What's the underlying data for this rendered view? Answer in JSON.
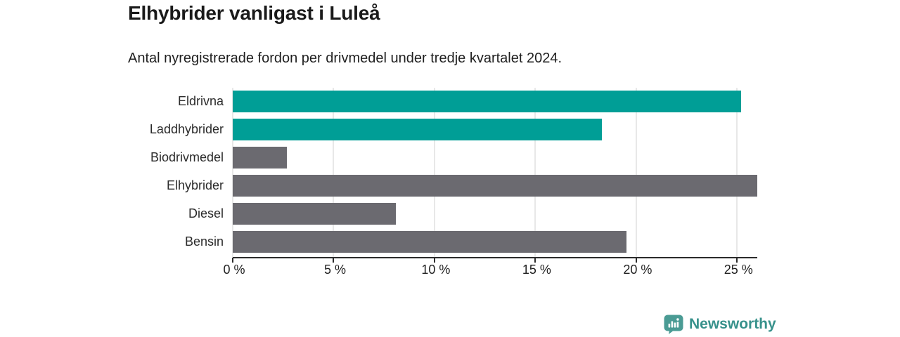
{
  "chart_data": {
    "type": "bar",
    "orientation": "horizontal",
    "title": "Elhybrider vanligast i Luleå",
    "subtitle": "Antal nyregistrerade fordon per drivmedel under tredje kvartalet 2024.",
    "categories": [
      "Eldrivna",
      "Laddhybrider",
      "Biodrivmedel",
      "Elhybrider",
      "Diesel",
      "Bensin"
    ],
    "values": [
      25.2,
      18.3,
      2.7,
      26,
      8.1,
      19.5
    ],
    "unit": "%",
    "bar_colors": [
      "#009e96",
      "#009e96",
      "#6b6a70",
      "#6b6a70",
      "#6b6a70",
      "#6b6a70"
    ],
    "xlim": [
      0,
      26
    ],
    "x_ticks": [
      0,
      5,
      10,
      15,
      20,
      25
    ],
    "x_tick_labels": [
      "0 %",
      "5 %",
      "10 %",
      "15 %",
      "20 %",
      "25 %"
    ],
    "grid": true,
    "legend": "none",
    "colors": {
      "accent_teal": "#009e96",
      "neutral_gray": "#6b6a70",
      "gridline": "#e8e8e8",
      "axis": "#2b2b2b",
      "title_text": "#1a1a1a",
      "label_text": "#2b2b2b"
    }
  },
  "branding": {
    "name": "Newsworthy",
    "icon": "bar-chart-speech-bubble-icon",
    "icon_color": "#4a9b94",
    "text_color": "#37918b"
  }
}
